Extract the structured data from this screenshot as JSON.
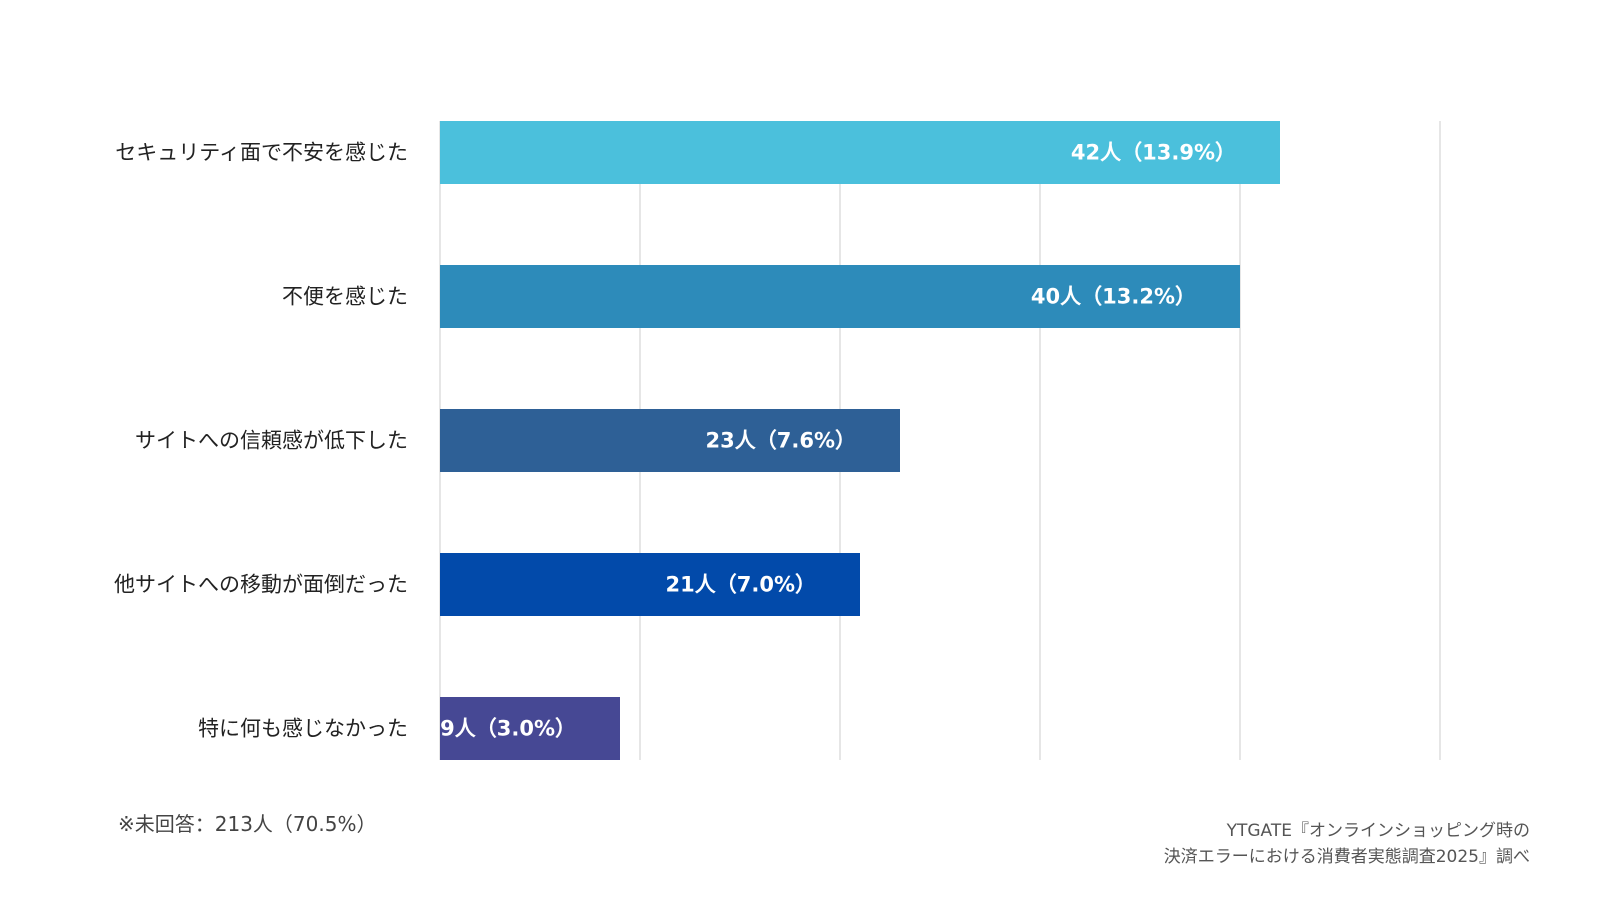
{
  "chart_data": {
    "type": "bar",
    "orientation": "horizontal",
    "categories": [
      "セキュリティ面で不安を感じた",
      "不便を感じた",
      "サイトへの信頼感が低下した",
      "他サイトへの移動が面倒だった",
      "特に何も感じなかった"
    ],
    "values": [
      42,
      40,
      23,
      21,
      9
    ],
    "data_labels": [
      "42人（13.9%）",
      "40人（13.2%）",
      "23人（7.6%）",
      "21人（7.0%）",
      "9人（3.0%）"
    ],
    "colors": [
      "#4BC0DC",
      "#2D8BBA",
      "#2E6096",
      "#024AAA",
      "#464894"
    ],
    "xlim": [
      0,
      50
    ],
    "grid_step": 10,
    "grid": true,
    "title": "",
    "xlabel": "",
    "ylabel": ""
  },
  "note": "※未回答：213人（70.5%）",
  "source": {
    "line1": "YTGATE『オンラインショッピング時の",
    "line2": "決済エラーにおける消費者実態調査2025』調べ"
  }
}
